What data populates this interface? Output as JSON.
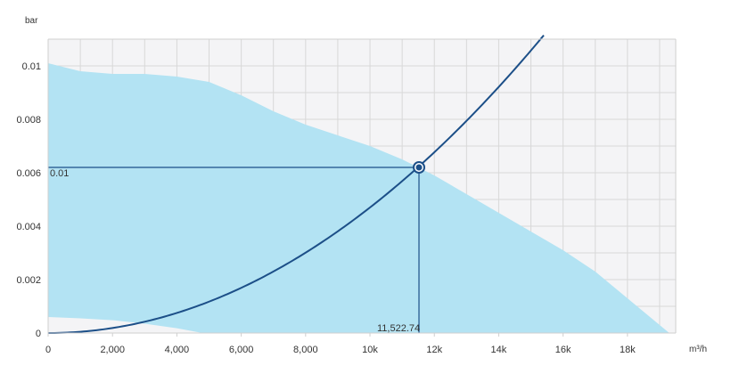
{
  "chart_data": {
    "type": "line",
    "title": "",
    "xlabel": "m³/h",
    "ylabel": "bar",
    "xlim": [
      0,
      19500
    ],
    "ylim": [
      0,
      0.011
    ],
    "grid": true,
    "x_ticks": [
      {
        "value": 0,
        "label": "0"
      },
      {
        "value": 2000,
        "label": "2,000"
      },
      {
        "value": 4000,
        "label": "4,000"
      },
      {
        "value": 6000,
        "label": "6,000"
      },
      {
        "value": 8000,
        "label": "8,000"
      },
      {
        "value": 10000,
        "label": "10k"
      },
      {
        "value": 12000,
        "label": "12k"
      },
      {
        "value": 14000,
        "label": "14k"
      },
      {
        "value": 16000,
        "label": "16k"
      },
      {
        "value": 18000,
        "label": "18k"
      }
    ],
    "y_ticks": [
      {
        "value": 0,
        "label": "0"
      },
      {
        "value": 0.002,
        "label": "0.002"
      },
      {
        "value": 0.004,
        "label": "0.004"
      },
      {
        "value": 0.006,
        "label": "0.006"
      },
      {
        "value": 0.008,
        "label": "0.008"
      },
      {
        "value": 0.01,
        "label": "0.01"
      }
    ],
    "operating_range": {
      "upper": [
        {
          "x": 0,
          "y": 0.0101
        },
        {
          "x": 1000,
          "y": 0.0098
        },
        {
          "x": 2000,
          "y": 0.0097
        },
        {
          "x": 3000,
          "y": 0.0097
        },
        {
          "x": 4000,
          "y": 0.0096
        },
        {
          "x": 5000,
          "y": 0.0094
        },
        {
          "x": 6000,
          "y": 0.0089
        },
        {
          "x": 7000,
          "y": 0.0083
        },
        {
          "x": 8000,
          "y": 0.0078
        },
        {
          "x": 9000,
          "y": 0.0074
        },
        {
          "x": 10000,
          "y": 0.007
        },
        {
          "x": 11000,
          "y": 0.0065
        },
        {
          "x": 12000,
          "y": 0.0059
        },
        {
          "x": 13000,
          "y": 0.0052
        },
        {
          "x": 14000,
          "y": 0.0045
        },
        {
          "x": 15000,
          "y": 0.0038
        },
        {
          "x": 16000,
          "y": 0.0031
        },
        {
          "x": 17000,
          "y": 0.0023
        },
        {
          "x": 18000,
          "y": 0.0013
        },
        {
          "x": 19300,
          "y": 0
        }
      ],
      "lower": [
        {
          "x": 0,
          "y": 0.0006
        },
        {
          "x": 1000,
          "y": 0.00055
        },
        {
          "x": 2000,
          "y": 0.00048
        },
        {
          "x": 3000,
          "y": 0.00035
        },
        {
          "x": 4000,
          "y": 0.00018
        },
        {
          "x": 4800,
          "y": 0
        }
      ]
    },
    "system_curve": {
      "coefficient": 4.7e-11,
      "x_max": 15400
    },
    "operating_point": {
      "x": 11522.74,
      "y": 0.0062,
      "x_label": "11,522.74",
      "y_label": "0.01"
    },
    "colors": {
      "range_fill": "#b3e3f3",
      "curve": "#1c4f88",
      "point": "#1c4f88",
      "grid": "#d8d8d8",
      "plot_bg": "#f4f4f6",
      "axis": "#cfcfcf"
    }
  }
}
